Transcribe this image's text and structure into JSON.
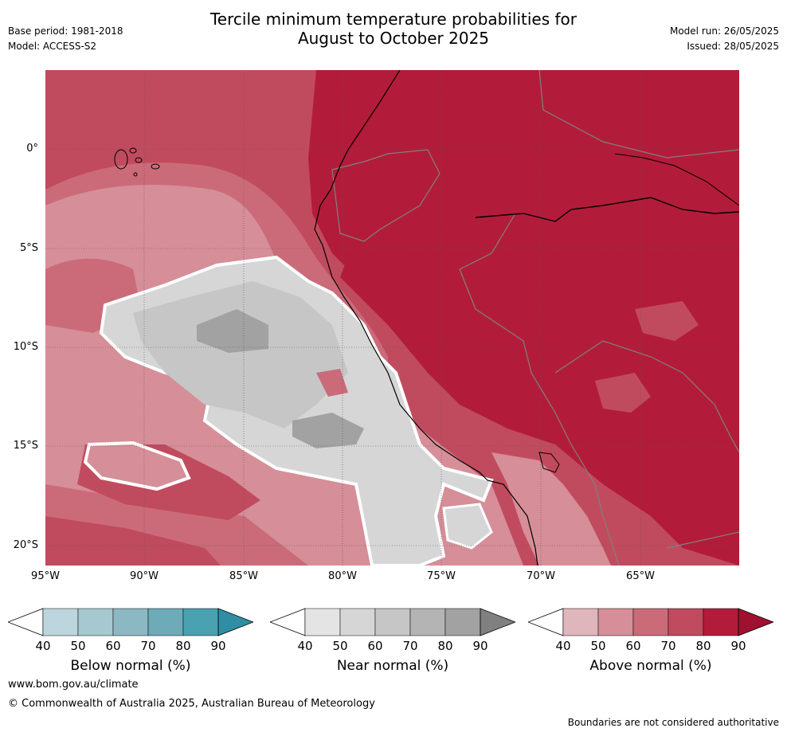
{
  "title": {
    "line1": "Tercile minimum temperature probabilities for",
    "line2": "August to October 2025"
  },
  "meta": {
    "base_period": "Base period: 1981-2018",
    "model": "Model: ACCESS-S2",
    "model_run": "Model run: 26/05/2025",
    "issued": "Issued: 28/05/2025"
  },
  "map": {
    "region": "Western South America and adjacent Pacific",
    "lat_labels": [
      "0°",
      "5°S",
      "10°S",
      "15°S",
      "20°S"
    ],
    "lon_labels": [
      "95°W",
      "90°W",
      "85°W",
      "80°W",
      "75°W",
      "70°W",
      "65°W"
    ],
    "dominant_category": "Above normal",
    "colors": {
      "above": [
        "#e0b6bd",
        "#d68e98",
        "#cb6b79",
        "#c14b5e",
        "#b21c3a",
        "#a01030"
      ],
      "near": [
        "#e4e4e4",
        "#d6d6d6",
        "#c6c6c6",
        "#b4b4b4",
        "#a2a2a2",
        "#808080"
      ],
      "below": [
        "#bdd5dc",
        "#a6c8cf",
        "#8bb8c3",
        "#6cabb7",
        "#4aa1b0",
        "#2f8ea4"
      ],
      "coast": "#000000",
      "borders": "#808080",
      "near_region_outline": "#ffffff"
    }
  },
  "colorbars": [
    {
      "id": "below",
      "title": "Below normal (%)",
      "ticks": [
        "40",
        "50",
        "60",
        "70",
        "80",
        "90"
      ],
      "colors": [
        "#bdd5dc",
        "#a6c8cf",
        "#8bb8c3",
        "#6cabb7",
        "#4aa1b0",
        "#2f8ea4"
      ]
    },
    {
      "id": "near",
      "title": "Near normal (%)",
      "ticks": [
        "40",
        "50",
        "60",
        "70",
        "80",
        "90"
      ],
      "colors": [
        "#e4e4e4",
        "#d6d6d6",
        "#c6c6c6",
        "#b4b4b4",
        "#a2a2a2",
        "#808080"
      ]
    },
    {
      "id": "above",
      "title": "Above normal (%)",
      "ticks": [
        "40",
        "50",
        "60",
        "70",
        "80",
        "90"
      ],
      "colors": [
        "#e0b6bd",
        "#d68e98",
        "#cb6b79",
        "#c14b5e",
        "#b21c3a",
        "#a01030"
      ]
    }
  ],
  "footer": {
    "url": "www.bom.gov.au/climate",
    "copyright": "© Commonwealth of Australia 2025, Australian Bureau of Meteorology",
    "disclaimer": "Boundaries are not considered authoritative"
  }
}
